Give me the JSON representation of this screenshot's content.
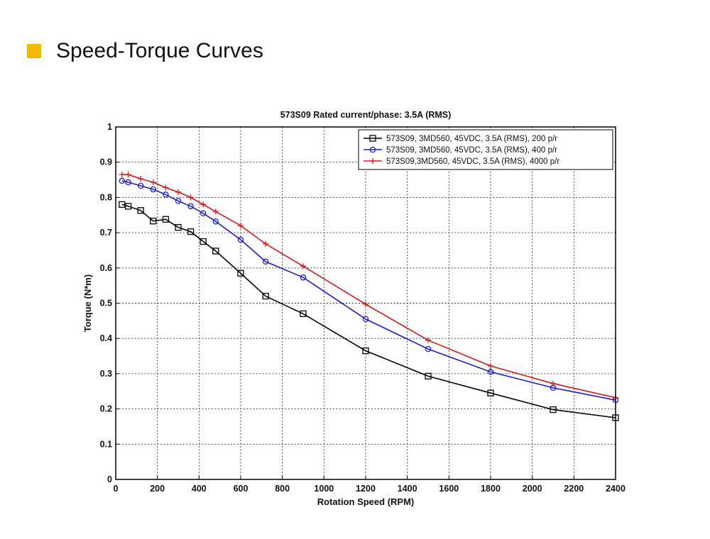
{
  "header": {
    "title": "Speed-Torque Curves",
    "accent_color": "#f5b800"
  },
  "chart_data": {
    "type": "line",
    "title": "573S09 Rated current/phase: 3.5A (RMS)",
    "xlabel": "Rotation Speed (RPM)",
    "ylabel": "Torque (N*m)",
    "xlim": [
      0,
      2400
    ],
    "ylim": [
      0,
      1
    ],
    "xticks": [
      0,
      200,
      400,
      600,
      800,
      1000,
      1200,
      1400,
      1600,
      1800,
      2000,
      2200,
      2400
    ],
    "yticks": [
      0,
      0.1,
      0.2,
      0.3,
      0.4,
      0.5,
      0.6,
      0.7,
      0.8,
      0.9,
      1
    ],
    "xtick_labels": [
      "0",
      "200",
      "400",
      "600",
      "800",
      "1000",
      "1200",
      "1400",
      "1600",
      "1800",
      "2000",
      "2200",
      "2400"
    ],
    "ytick_labels": [
      "0",
      "0.1",
      "0.2",
      "0.3",
      "0.4",
      "0.5",
      "0.6",
      "0.7",
      "0.8",
      "0.9",
      "1"
    ],
    "grid": true,
    "legend_position": "top-right",
    "series": [
      {
        "name": "573S09, 3MD560, 45VDC, 3.5A (RMS), 200 p/r",
        "color": "#000000",
        "marker": "square",
        "x": [
          30,
          60,
          120,
          180,
          240,
          300,
          360,
          420,
          480,
          600,
          720,
          900,
          1200,
          1500,
          1800,
          2100,
          2400
        ],
        "y": [
          0.78,
          0.775,
          0.763,
          0.733,
          0.738,
          0.715,
          0.703,
          0.675,
          0.648,
          0.585,
          0.52,
          0.47,
          0.365,
          0.293,
          0.245,
          0.198,
          0.175
        ]
      },
      {
        "name": "573S09, 3MD560, 45VDC, 3.5A (RMS), 400 p/r",
        "color": "#1f1fcc",
        "marker": "circle",
        "x": [
          30,
          60,
          120,
          180,
          240,
          300,
          360,
          420,
          480,
          600,
          720,
          900,
          1200,
          1500,
          1800,
          2100,
          2400
        ],
        "y": [
          0.847,
          0.843,
          0.833,
          0.823,
          0.808,
          0.79,
          0.775,
          0.755,
          0.732,
          0.68,
          0.618,
          0.573,
          0.455,
          0.37,
          0.305,
          0.26,
          0.225
        ]
      },
      {
        "name": "573S09,3MD560, 45VDC, 3.5A (RMS), 4000 p/r",
        "color": "#d41a1a",
        "marker": "plus",
        "x": [
          30,
          60,
          120,
          180,
          240,
          300,
          360,
          420,
          480,
          600,
          720,
          900,
          1200,
          1500,
          1800,
          2100,
          2400
        ],
        "y": [
          0.865,
          0.865,
          0.853,
          0.843,
          0.828,
          0.815,
          0.8,
          0.78,
          0.76,
          0.72,
          0.668,
          0.605,
          0.497,
          0.395,
          0.322,
          0.272,
          0.232
        ]
      }
    ]
  }
}
